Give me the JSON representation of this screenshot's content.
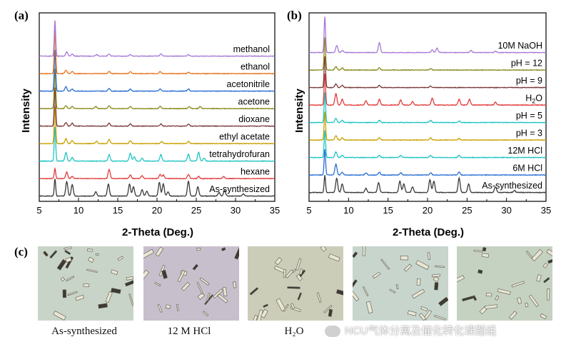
{
  "panels": {
    "a": {
      "letter": "(a)",
      "ylabel": "Intensity",
      "xlabel": "2-Theta (Deg.)",
      "xticks": [
        "5",
        "10",
        "15",
        "20",
        "25",
        "30",
        "35"
      ]
    },
    "b": {
      "letter": "(b)",
      "ylabel": "Intensity",
      "xlabel": "2-Theta (Deg.)",
      "xticks": [
        "5",
        "10",
        "15",
        "20",
        "25",
        "30",
        "35"
      ]
    },
    "c": {
      "letter": "(c)",
      "captions": [
        "As-synthesized",
        "12 M HCl",
        "H₂O"
      ]
    }
  },
  "watermark": "NCU气体分离及催化转化课题组",
  "chart_data": [
    {
      "type": "line",
      "panel": "a",
      "xlabel": "2-Theta (Deg.)",
      "ylabel": "Intensity",
      "xlim": [
        5,
        35
      ],
      "series": [
        {
          "name": "As-synthesized",
          "color": "#3a3a3a",
          "peaks": [
            [
              7.0,
              24
            ],
            [
              8.5,
              20
            ],
            [
              9.2,
              16
            ],
            [
              12.2,
              6
            ],
            [
              13.8,
              17
            ],
            [
              16.5,
              17
            ],
            [
              17.0,
              13
            ],
            [
              18.1,
              9
            ],
            [
              18.7,
              7
            ],
            [
              20.3,
              19
            ],
            [
              20.8,
              17
            ],
            [
              21.4,
              6
            ],
            [
              24.0,
              21
            ],
            [
              25.2,
              13
            ],
            [
              27.9,
              5
            ],
            [
              28.6,
              8
            ],
            [
              31.0,
              3
            ]
          ]
        },
        {
          "name": "hexane",
          "color": "#e23b3b",
          "peaks": [
            [
              7.0,
              14
            ],
            [
              8.5,
              9
            ],
            [
              9.2,
              3
            ],
            [
              13.9,
              13
            ],
            [
              16.6,
              5
            ],
            [
              18.1,
              4
            ],
            [
              20.4,
              6
            ],
            [
              20.8,
              5
            ],
            [
              24.0,
              6
            ],
            [
              25.3,
              3
            ],
            [
              28.5,
              3
            ]
          ]
        },
        {
          "name": "tetrahydrofuran",
          "color": "#20c4c4",
          "peaks": [
            [
              7.0,
              48
            ],
            [
              8.4,
              12
            ],
            [
              9.2,
              5
            ],
            [
              13.9,
              9
            ],
            [
              16.6,
              11
            ],
            [
              17.1,
              6
            ],
            [
              18.1,
              4
            ],
            [
              20.5,
              9
            ],
            [
              24.0,
              10
            ],
            [
              25.3,
              12
            ],
            [
              26.0,
              4
            ]
          ]
        },
        {
          "name": "ethyl acetate",
          "color": "#c9a000",
          "peaks": [
            [
              7.0,
              52
            ],
            [
              8.4,
              7
            ],
            [
              9.2,
              4
            ],
            [
              12.3,
              3
            ],
            [
              13.9,
              6
            ],
            [
              16.6,
              4
            ],
            [
              20.6,
              3
            ],
            [
              24.0,
              3
            ]
          ]
        },
        {
          "name": "dioxane",
          "color": "#7b3b3b",
          "peaks": [
            [
              7.0,
              54
            ],
            [
              8.4,
              5
            ],
            [
              9.2,
              4
            ],
            [
              13.9,
              4
            ],
            [
              16.6,
              3
            ],
            [
              20.5,
              3
            ],
            [
              24.0,
              3
            ]
          ]
        },
        {
          "name": "acetone",
          "color": "#8a8a1a",
          "peaks": [
            [
              7.0,
              56
            ],
            [
              8.4,
              4
            ],
            [
              9.2,
              3
            ],
            [
              12.2,
              3
            ],
            [
              13.9,
              4
            ],
            [
              16.6,
              3
            ],
            [
              20.4,
              3
            ],
            [
              24.1,
              3
            ],
            [
              25.5,
              3
            ]
          ]
        },
        {
          "name": "acetonitrile",
          "color": "#2a6fd6",
          "peaks": [
            [
              7.0,
              58
            ],
            [
              8.4,
              6
            ],
            [
              9.2,
              3
            ],
            [
              13.9,
              4
            ],
            [
              16.6,
              3
            ],
            [
              20.4,
              3
            ],
            [
              24.0,
              3
            ]
          ]
        },
        {
          "name": "ethanol",
          "color": "#e8731e",
          "peaks": [
            [
              7.0,
              62
            ],
            [
              8.4,
              5
            ],
            [
              9.2,
              3
            ],
            [
              13.9,
              3
            ],
            [
              16.6,
              3
            ],
            [
              20.4,
              3
            ],
            [
              24.0,
              2
            ]
          ]
        },
        {
          "name": "methanol",
          "color": "#a77ad8",
          "peaks": [
            [
              7.0,
              50
            ],
            [
              8.5,
              6
            ],
            [
              9.2,
              3
            ],
            [
              12.3,
              2
            ],
            [
              13.9,
              3
            ],
            [
              16.6,
              2
            ],
            [
              20.5,
              3
            ],
            [
              24.0,
              2
            ]
          ]
        }
      ]
    },
    {
      "type": "line",
      "panel": "b",
      "xlabel": "2-Theta (Deg.)",
      "ylabel": "Intensity",
      "xlim": [
        5,
        35
      ],
      "series": [
        {
          "name": "As-synthesized",
          "color": "#3a3a3a",
          "peaks": [
            [
              7.0,
              24
            ],
            [
              8.5,
              20
            ],
            [
              9.2,
              12
            ],
            [
              12.2,
              6
            ],
            [
              13.8,
              14
            ],
            [
              16.5,
              16
            ],
            [
              17.0,
              12
            ],
            [
              18.1,
              8
            ],
            [
              20.3,
              18
            ],
            [
              20.8,
              16
            ],
            [
              24.0,
              20
            ],
            [
              25.2,
              12
            ],
            [
              28.6,
              8
            ],
            [
              31.0,
              3
            ]
          ]
        },
        {
          "name": "6M HCl",
          "color": "#2a6fd6",
          "peaks": [
            [
              7.0,
              36
            ],
            [
              8.4,
              15
            ],
            [
              9.2,
              4
            ],
            [
              12.2,
              3
            ],
            [
              13.9,
              4
            ],
            [
              16.6,
              3
            ],
            [
              20.4,
              3
            ],
            [
              24.0,
              4
            ]
          ]
        },
        {
          "name": "12M HCl",
          "color": "#20c4c4",
          "peaks": [
            [
              7.0,
              38
            ],
            [
              8.4,
              8
            ],
            [
              9.2,
              3
            ],
            [
              13.9,
              3
            ],
            [
              16.6,
              3
            ],
            [
              20.4,
              3
            ],
            [
              24.0,
              3
            ]
          ]
        },
        {
          "name": "pH = 3",
          "color": "#c9a000",
          "peaks": [
            [
              7.0,
              40
            ],
            [
              8.4,
              6
            ],
            [
              9.2,
              3
            ],
            [
              13.9,
              3
            ],
            [
              20.4,
              3
            ],
            [
              24.0,
              2
            ]
          ]
        },
        {
          "name": "pH = 5",
          "color": "#20c4c4",
          "peaks": [
            [
              7.0,
              42
            ],
            [
              8.4,
              6
            ],
            [
              9.2,
              3
            ],
            [
              13.9,
              3
            ],
            [
              20.4,
              3
            ],
            [
              24.0,
              2
            ]
          ]
        },
        {
          "name": "H2O",
          "color": "#e23b3b",
          "peaks": [
            [
              7.0,
              44
            ],
            [
              8.4,
              16
            ],
            [
              9.2,
              8
            ],
            [
              12.2,
              6
            ],
            [
              13.9,
              8
            ],
            [
              16.6,
              7
            ],
            [
              18.1,
              5
            ],
            [
              20.6,
              10
            ],
            [
              24.0,
              8
            ],
            [
              25.3,
              8
            ],
            [
              28.6,
              4
            ]
          ]
        },
        {
          "name": "pH = 9",
          "color": "#7b3b3b",
          "peaks": [
            [
              7.0,
              44
            ],
            [
              8.4,
              5
            ],
            [
              9.2,
              3
            ],
            [
              13.9,
              3
            ],
            [
              20.4,
              2
            ]
          ]
        },
        {
          "name": "pH = 12",
          "color": "#8a8a1a",
          "peaks": [
            [
              7.0,
              46
            ],
            [
              8.4,
              5
            ],
            [
              9.2,
              3
            ],
            [
              13.9,
              3
            ],
            [
              20.4,
              2
            ]
          ]
        },
        {
          "name": "10M NaOH",
          "color": "#a77ad8",
          "peaks": [
            [
              7.0,
              50
            ],
            [
              8.5,
              10
            ],
            [
              9.2,
              3
            ],
            [
              13.9,
              14
            ],
            [
              20.6,
              4
            ],
            [
              21.2,
              6
            ],
            [
              25.5,
              3
            ],
            [
              28.6,
              2
            ]
          ]
        }
      ]
    }
  ]
}
